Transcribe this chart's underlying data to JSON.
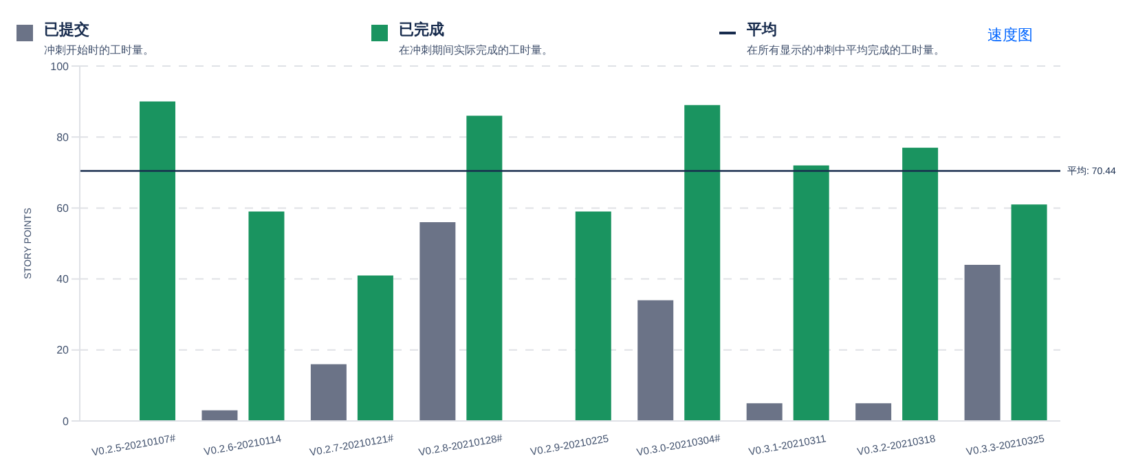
{
  "chart_data": {
    "type": "bar",
    "ylabel": "STORY POINTS",
    "categories": [
      "V0.2.5-20210107#",
      "V0.2.6-20210114",
      "V0.2.7-20210121#",
      "V0.2.8-20210128#",
      "V0.2.9-20210225",
      "V0.3.0-20210304#",
      "V0.3.1-20210311",
      "V0.3.2-20210318",
      "V0.3.3-20210325"
    ],
    "series": [
      {
        "name": "已提交",
        "color": "#6b7387",
        "values": [
          0,
          3,
          16,
          56,
          0,
          34,
          5,
          5,
          44
        ]
      },
      {
        "name": "已完成",
        "color": "#1a9460",
        "values": [
          90,
          59,
          41,
          86,
          59,
          89,
          72,
          77,
          61
        ]
      }
    ],
    "ylim": [
      0,
      100
    ],
    "yticks": [
      0,
      20,
      40,
      60,
      80,
      100
    ],
    "grid": "y",
    "legend": "top",
    "ref_lines": [
      {
        "axis": "y",
        "value": 70.44,
        "label": "平均: 70.44",
        "color": "#172b4d"
      }
    ],
    "annotations": [
      "冲刺开始时的工时量。",
      "在冲刺期间实际完成的工时量。",
      "平均",
      "在所有显示的冲刺中平均完成的工时量。",
      "速度图"
    ]
  }
}
